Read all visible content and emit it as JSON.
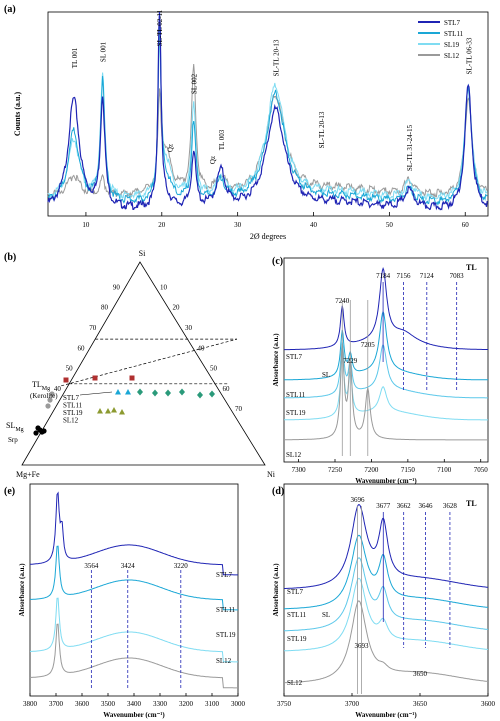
{
  "chart_data": [
    {
      "panel": "(a)",
      "type": "line",
      "xlabel": "2Ø degrees",
      "ylabel": "Counts (a.u.)",
      "xlim": [
        5,
        63
      ],
      "xticks": [
        10,
        20,
        30,
        40,
        50,
        60
      ],
      "legend": "top-right",
      "series": [
        {
          "name": "STL7",
          "color": "#1f24b4"
        },
        {
          "name": "STL11",
          "color": "#1aa7d6"
        },
        {
          "name": "SL19",
          "color": "#7fdcf2"
        },
        {
          "name": "SL12",
          "color": "#9a9a9a"
        }
      ],
      "annotations": [
        {
          "x": 8.4,
          "text": "TL 001"
        },
        {
          "x": 12.2,
          "text": "SL 001"
        },
        {
          "x": 19.6,
          "text": "SL-TL 02-11"
        },
        {
          "x": 21.0,
          "text": "Qz"
        },
        {
          "x": 24.2,
          "text": "SL 002"
        },
        {
          "x": 26.6,
          "text": "Qz"
        },
        {
          "x": 27.8,
          "text": "TL 003"
        },
        {
          "x": 35.0,
          "text": "SL-TL 20-13"
        },
        {
          "x": 41.0,
          "text": "SL-TL 20-13"
        },
        {
          "x": 52.6,
          "text": "SL-TL 31-24-15"
        },
        {
          "x": 60.4,
          "text": "SL-TL 06-33"
        }
      ]
    },
    {
      "panel": "(b)",
      "type": "scatter",
      "vertices": [
        "Si",
        "Mg+Fe",
        "Ni"
      ],
      "ticks_left": [
        "90",
        "80",
        "70",
        "60",
        "50",
        "40"
      ],
      "ticks_right": [
        "10",
        "20",
        "30",
        "40",
        "50",
        "60",
        "70"
      ],
      "labels": {
        "tl": "TL",
        "tl_sub": "Mg",
        "tl_note": "(Kerolite)",
        "sl": "SL",
        "sl_sub": "Mg",
        "srp": "Srp"
      },
      "sample_labels": [
        "STL7",
        "STL11",
        "STL19",
        "SL12"
      ]
    },
    {
      "panel": "(c)",
      "type": "line",
      "xlabel": "Wavenumber (cm⁻¹)",
      "ylabel": "Absorbance (a.u.)",
      "xlim": [
        7320,
        7040
      ],
      "xticks": [
        7300,
        7250,
        7200,
        7150,
        7100,
        7050
      ],
      "group_label": "TL",
      "tl_lines": [
        7184,
        7156,
        7124,
        7083
      ],
      "sl_lines": [
        7240,
        7229,
        7205
      ],
      "series_labels": [
        "STL7",
        "SL",
        "STL11",
        "STL19",
        "SL12"
      ]
    },
    {
      "panel": "(d)",
      "type": "line",
      "xlabel": "Wavenumber (cm⁻¹)",
      "ylabel": "Absorbance (a.u.)",
      "xlim": [
        3750,
        3600
      ],
      "xticks": [
        3750,
        3700,
        3650,
        3600
      ],
      "group_label": "TL",
      "tl_lines": [
        3677,
        3662,
        3646,
        3628
      ],
      "sl_lines": [
        3696,
        3693
      ],
      "extra_label": "3650",
      "series_labels": [
        "STL7",
        "STL11",
        "SL",
        "STL19",
        "SL12"
      ]
    },
    {
      "panel": "(e)",
      "type": "line",
      "xlabel": "Wavenumber (cm⁻¹)",
      "ylabel": "Absorbance (a.u.)",
      "xlim": [
        3800,
        3000
      ],
      "xticks": [
        3800,
        3700,
        3600,
        3500,
        3400,
        3300,
        3200,
        3100,
        3000
      ],
      "lines": [
        3564,
        3424,
        3220
      ],
      "series_labels": [
        "STL7",
        "STL11",
        "STL19",
        "SL12"
      ]
    }
  ]
}
